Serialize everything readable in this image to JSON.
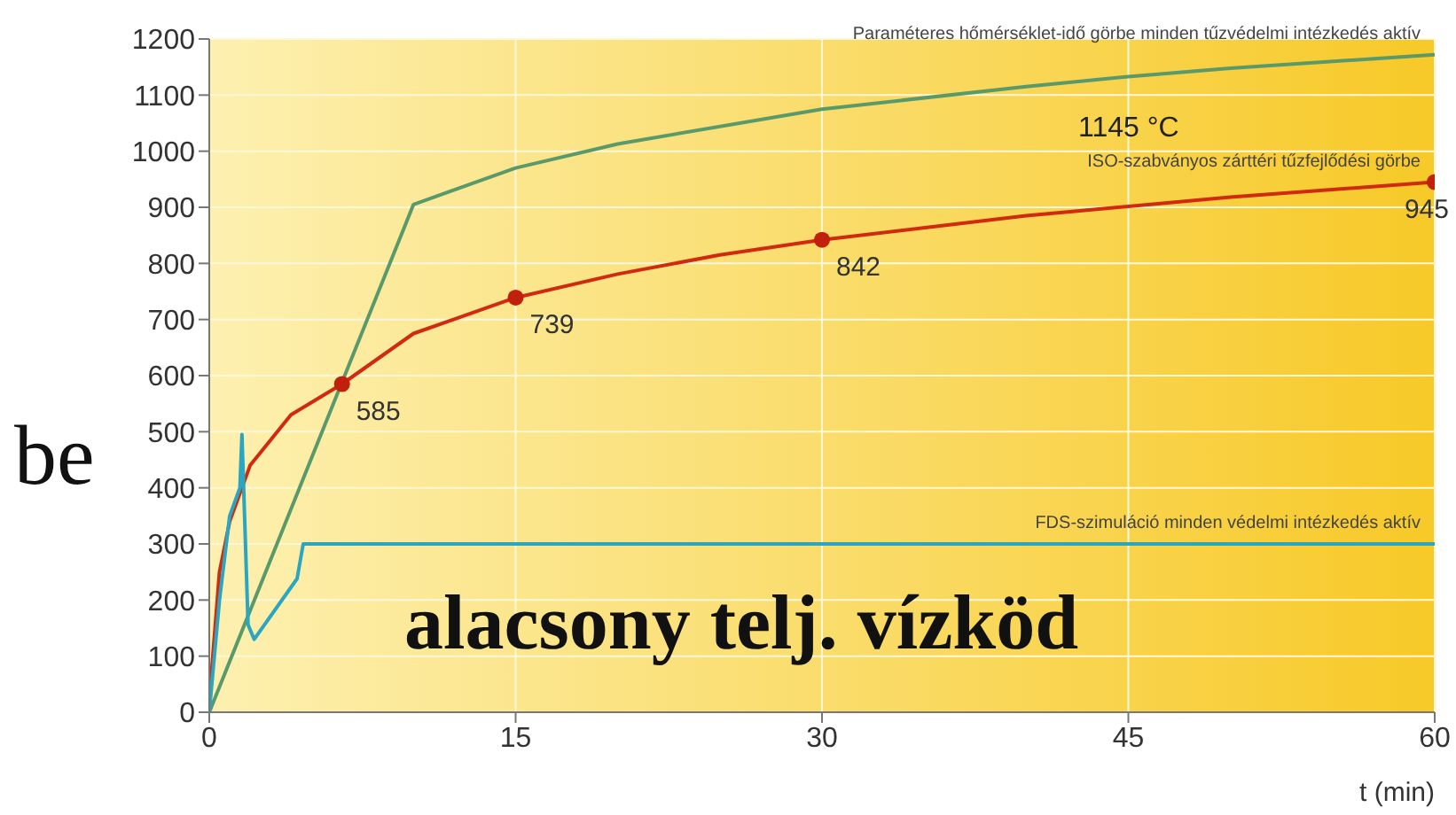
{
  "chart_data": {
    "type": "line",
    "xlabel": "t (min)",
    "xlim": [
      0,
      60
    ],
    "xticks": [
      0,
      15,
      30,
      45,
      60
    ],
    "ylim": [
      0,
      1200
    ],
    "yticks": [
      0,
      100,
      200,
      300,
      400,
      500,
      600,
      700,
      800,
      900,
      1000,
      1100,
      1200
    ],
    "grid": true,
    "marker": "none",
    "line_style": "solid",
    "series": [
      {
        "name": "Paraméteres hőmérséklet-idő görbe minden tűzvédelmi intézkedés aktív",
        "color": "#5a9a6a",
        "x": [
          0,
          10,
          15,
          20,
          30,
          40,
          45,
          50,
          60
        ],
        "values": [
          0,
          905,
          970,
          1013,
          1075,
          1115,
          1133,
          1148,
          1172
        ]
      },
      {
        "name": "ISO-szabványos zárttéri tűzfejlődési görbe",
        "color": "#d02a10",
        "x": [
          0,
          0.5,
          1,
          2,
          4,
          6.5,
          10,
          15,
          20,
          25,
          30,
          40,
          50,
          60
        ],
        "values": [
          20,
          250,
          340,
          440,
          530,
          585,
          675,
          739,
          781,
          815,
          842,
          885,
          918,
          945
        ]
      },
      {
        "type": "scatter",
        "color": "#c0200c",
        "marker": "circle",
        "x": [
          6.5,
          15,
          30,
          60
        ],
        "values": [
          585,
          739,
          842,
          945
        ],
        "value_labels": [
          "585",
          "739",
          "842",
          "945"
        ]
      },
      {
        "name": "FDS-szimuláció minden védelmi intézkedés aktív",
        "color": "#2aa6c0",
        "x": [
          0,
          0.5,
          1,
          1.5,
          1.6,
          1.9,
          2.2,
          4.3,
          4.6,
          60
        ],
        "values": [
          0,
          200,
          350,
          400,
          495,
          156,
          130,
          238,
          300,
          300
        ]
      }
    ],
    "annotations": [
      "1145 °C",
      "alacsony telj. vízköd",
      "be"
    ]
  }
}
